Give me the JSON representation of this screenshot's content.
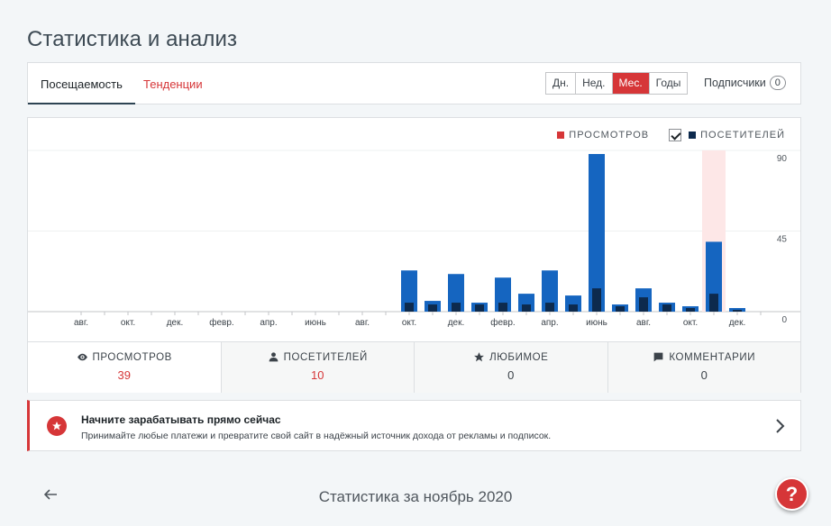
{
  "page_title": "Статистика и анализ",
  "tabs": {
    "traffic": "Посещаемость",
    "insights": "Тенденции"
  },
  "periods": [
    "Дн.",
    "Нед.",
    "Мес.",
    "Годы"
  ],
  "active_period": "Мес.",
  "subscribers": {
    "label": "Подписчики",
    "count": "0"
  },
  "legend": {
    "views": "ПРОСМОТРОВ",
    "visitors": "ПОСЕТИТЕЛЕЙ"
  },
  "colors": {
    "views": "#1565c0",
    "visitors": "#0d2a4d",
    "accent": "#d63638",
    "highlight": "#fde7e7"
  },
  "chart_data": {
    "type": "bar",
    "categories": [
      "авг.",
      "",
      "окт.",
      "",
      "дек.",
      "",
      "февр.",
      "",
      "апр.",
      "",
      "июнь",
      "",
      "авг.",
      "",
      "окт.",
      "",
      "дек.",
      "",
      "февр.",
      "",
      "апр.",
      "",
      "июнь",
      "",
      "авг.",
      "",
      "окт.",
      "",
      "дек.",
      ""
    ],
    "series": [
      {
        "name": "ПРОСМОТРОВ",
        "values": [
          0,
          0,
          0,
          0,
          0,
          0,
          0,
          0,
          0,
          0,
          0,
          0,
          0,
          0,
          23,
          6,
          21,
          5,
          19,
          10,
          23,
          9,
          88,
          4,
          13,
          5,
          3,
          39,
          2,
          0
        ]
      },
      {
        "name": "ПОСЕТИТЕЛЕЙ",
        "values": [
          0,
          0,
          0,
          0,
          0,
          0,
          0,
          0,
          0,
          0,
          0,
          0,
          0,
          0,
          5,
          4,
          5,
          4,
          5,
          4,
          5,
          4,
          13,
          3,
          8,
          4,
          2,
          10,
          1,
          0
        ]
      }
    ],
    "ylim": [
      0,
      90
    ],
    "yticks": [
      0,
      45,
      90
    ],
    "highlight_index": 27
  },
  "stats": [
    {
      "label": "ПРОСМОТРОВ",
      "value": "39",
      "icon": "eye-icon"
    },
    {
      "label": "ПОСЕТИТЕЛЕЙ",
      "value": "10",
      "icon": "person-icon"
    },
    {
      "label": "ЛЮБИМОЕ",
      "value": "0",
      "icon": "star-icon"
    },
    {
      "label": "КОММЕНТАРИИ",
      "value": "0",
      "icon": "comment-icon"
    }
  ],
  "banner": {
    "title": "Начните зарабатывать прямо сейчас",
    "text": "Принимайте любые платежи и превратите свой сайт в надёжный источник дохода от рекламы и подписок."
  },
  "footer": {
    "period_title": "Статистика за ноябрь 2020"
  },
  "help": {
    "label": "?"
  }
}
